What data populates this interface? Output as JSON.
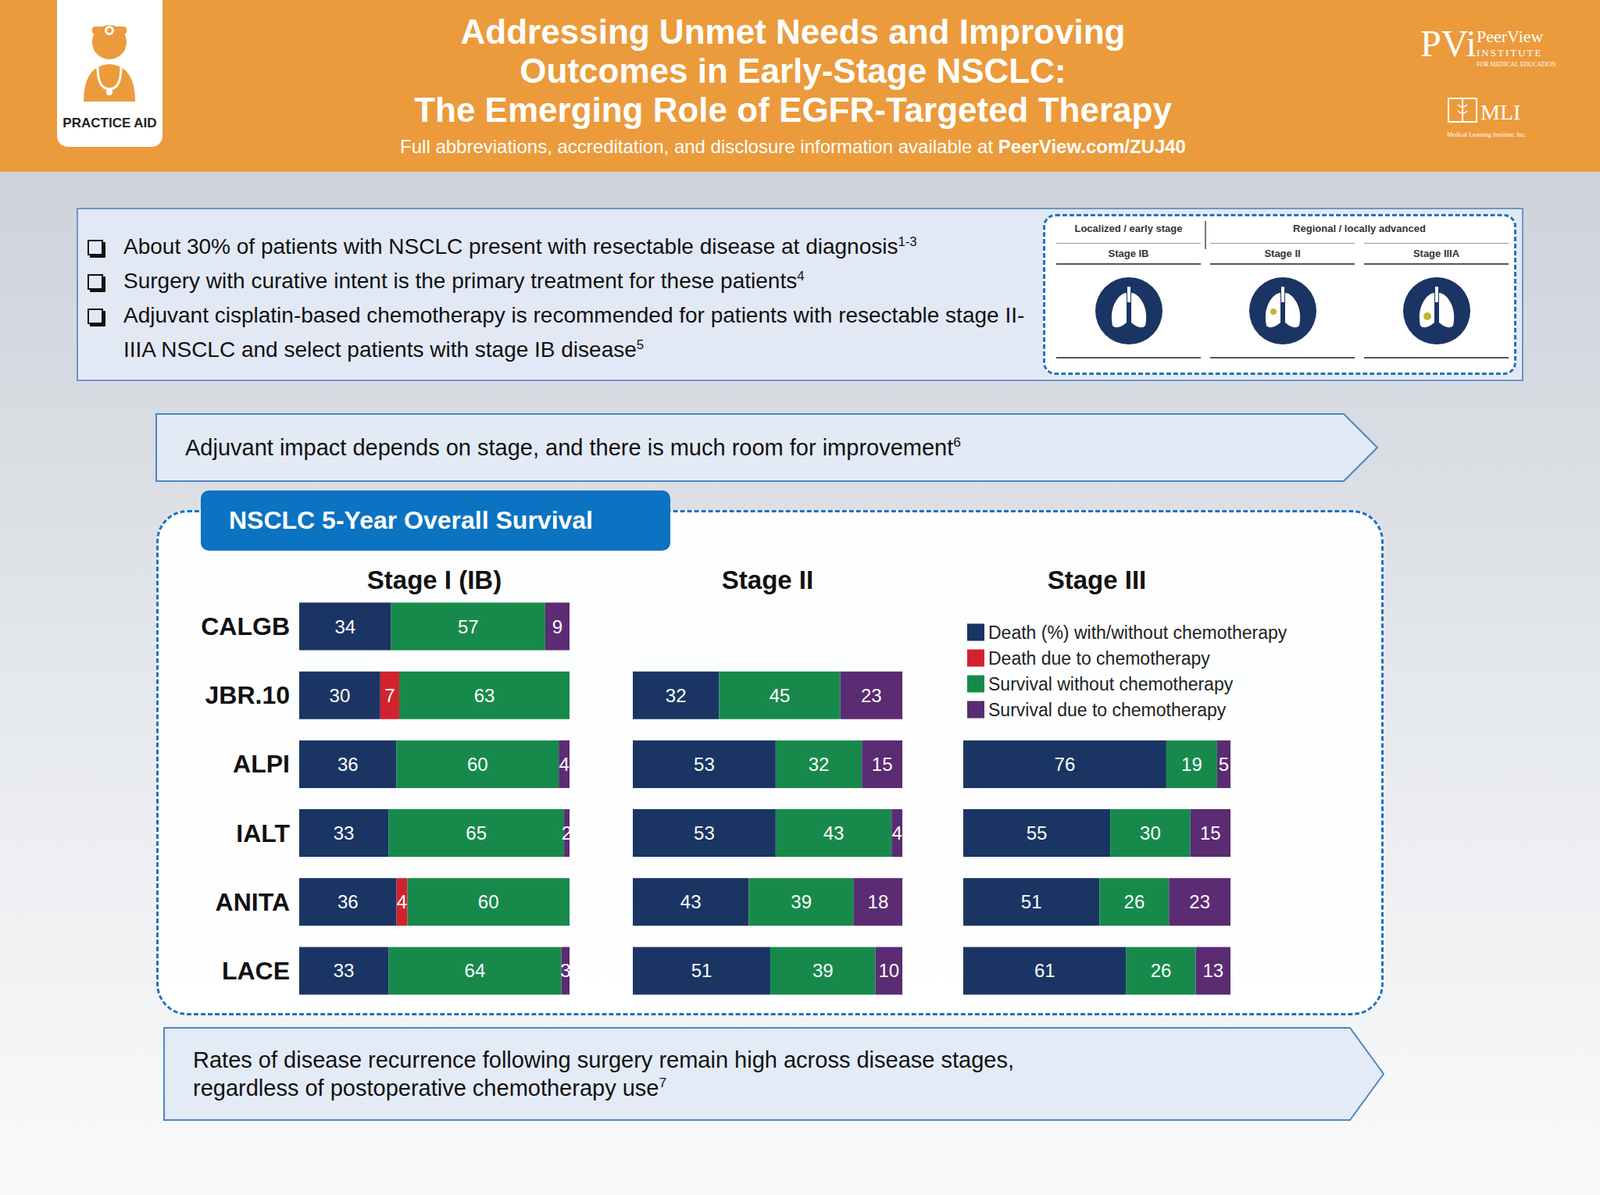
{
  "header": {
    "badge": "PRACTICE AID",
    "title": [
      "Addressing Unmet Needs and Improving",
      "Outcomes in Early-Stage NSCLC:",
      "The Emerging Role of EGFR-Targeted Therapy"
    ],
    "subtitle": "Full abbreviations, accreditation, and disclosure information available at ",
    "subtitle_link": "PeerView.com/ZUJ40",
    "logos": {
      "peerview": [
        "PVi",
        "PeerView",
        "INSTITUTE",
        "FOR MEDICAL EDUCATION"
      ],
      "mli": [
        "MLI",
        "Medical Learning Institute, Inc."
      ]
    }
  },
  "bullets": [
    {
      "text": "About 30% of patients with NSCLC present with resectable disease at diagnosis",
      "ref": "1-3"
    },
    {
      "text": "Surgery with curative intent is the primary treatment for these patients",
      "ref": "4"
    },
    {
      "text": "Adjuvant cisplatin-based chemotherapy is recommended for patients with resectable stage II-IIIA NSCLC and select patients with stage IB disease",
      "ref": "5"
    }
  ],
  "stage_diagram": {
    "groups": [
      {
        "label": "Localized / early stage",
        "stages": [
          "Stage IB"
        ]
      },
      {
        "label": "Regional / locally advanced",
        "stages": [
          "Stage II",
          "Stage IIIA"
        ]
      }
    ]
  },
  "callouts": [
    {
      "text": "Adjuvant impact depends on stage, and there is much room for improvement",
      "ref": "6"
    },
    {
      "text": "Rates of disease recurrence following surgery remain high across disease stages, regardless of postoperative chemotherapy use",
      "ref": "7"
    }
  ],
  "panel_title": "NSCLC 5-Year Overall Survival",
  "chart_data": [
    {
      "type": "bar",
      "title": "Stage I (IB)",
      "orientation": "horizontal",
      "stacked": true,
      "data_labels": true,
      "tick_labels": "y",
      "categories": [
        "CALGB",
        "JBR.10",
        "ALPI",
        "IALT",
        "ANITA",
        "LACE"
      ],
      "xlim": [
        0,
        100
      ],
      "series": [
        {
          "name": "Death (%) with/without chemotherapy",
          "color": "#1a3563",
          "values": [
            34,
            30,
            36,
            33,
            36,
            33
          ]
        },
        {
          "name": "Death due to chemotherapy",
          "color": "#d3222f",
          "values": [
            null,
            7,
            null,
            null,
            4,
            null
          ]
        },
        {
          "name": "Survival without chemotherapy",
          "color": "#178a4b",
          "values": [
            57,
            63,
            60,
            65,
            60,
            64
          ]
        },
        {
          "name": "Survival due to chemotherapy",
          "color": "#5b2b73",
          "values": [
            9,
            null,
            4,
            2,
            null,
            3
          ]
        }
      ]
    },
    {
      "type": "bar",
      "title": "Stage II",
      "orientation": "horizontal",
      "stacked": true,
      "data_labels": true,
      "tick_labels": false,
      "categories": [
        "CALGB",
        "JBR.10",
        "ALPI",
        "IALT",
        "ANITA",
        "LACE"
      ],
      "xlim": [
        0,
        100
      ],
      "series": [
        {
          "name": "Death (%) with/without chemotherapy",
          "color": "#1a3563",
          "values": [
            null,
            32,
            53,
            53,
            43,
            51
          ]
        },
        {
          "name": "Death due to chemotherapy",
          "color": "#d3222f",
          "values": [
            null,
            null,
            null,
            null,
            null,
            null
          ]
        },
        {
          "name": "Survival without chemotherapy",
          "color": "#178a4b",
          "values": [
            null,
            45,
            32,
            43,
            39,
            39
          ]
        },
        {
          "name": "Survival due to chemotherapy",
          "color": "#5b2b73",
          "values": [
            null,
            23,
            15,
            4,
            18,
            10
          ]
        }
      ]
    },
    {
      "type": "bar",
      "title": "Stage III",
      "orientation": "horizontal",
      "stacked": true,
      "data_labels": true,
      "tick_labels": false,
      "legend": "upper left",
      "categories": [
        "CALGB",
        "JBR.10",
        "ALPI",
        "IALT",
        "ANITA",
        "LACE"
      ],
      "xlim": [
        0,
        100
      ],
      "series": [
        {
          "name": "Death (%) with/without chemotherapy",
          "color": "#1a3563",
          "values": [
            null,
            null,
            76,
            55,
            51,
            61
          ]
        },
        {
          "name": "Death due to chemotherapy",
          "color": "#d3222f",
          "values": [
            null,
            null,
            null,
            null,
            null,
            null
          ]
        },
        {
          "name": "Survival without chemotherapy",
          "color": "#178a4b",
          "values": [
            null,
            null,
            19,
            30,
            26,
            26
          ]
        },
        {
          "name": "Survival due to chemotherapy",
          "color": "#5b2b73",
          "values": [
            null,
            null,
            5,
            15,
            23,
            13
          ]
        }
      ]
    }
  ]
}
